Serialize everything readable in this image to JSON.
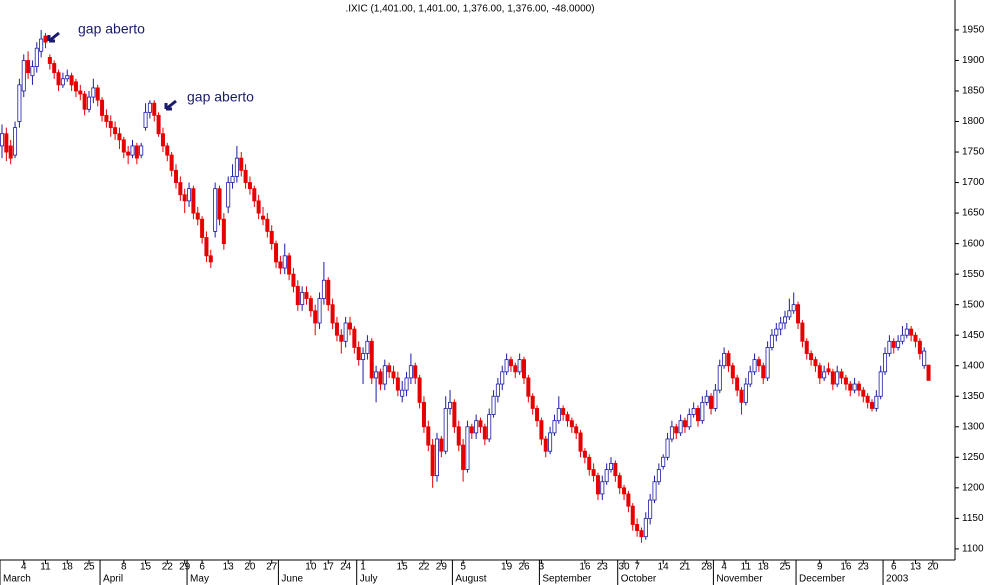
{
  "chart_data": {
    "type": "candlestick",
    "title": ".IXIC (1,401.00, 1,401.00, 1,376.00, 1,376.00, -48.0000)",
    "up_color": "#1c1ca8",
    "down_color": "#e60000",
    "annotations": [
      {
        "text": "gap aberto",
        "index": 10
      },
      {
        "text": "gap aberto",
        "index": 35
      }
    ],
    "ylim": [
      1090,
      1999
    ],
    "yticks": [
      1100,
      1150,
      1200,
      1250,
      1300,
      1350,
      1400,
      1450,
      1500,
      1550,
      1600,
      1650,
      1700,
      1750,
      1800,
      1850,
      1900,
      1950
    ],
    "xticks": [
      {
        "value": 5,
        "label": "4"
      },
      {
        "value": 10,
        "label": "11"
      },
      {
        "value": 15,
        "label": "18"
      },
      {
        "value": 20,
        "label": "25"
      },
      {
        "value": 28,
        "label": "8"
      },
      {
        "value": 33,
        "label": "15"
      },
      {
        "value": 38,
        "label": "22"
      },
      {
        "value": 42,
        "label": "29"
      },
      {
        "value": 46,
        "label": "6"
      },
      {
        "value": 52,
        "label": "13"
      },
      {
        "value": 57,
        "label": "20"
      },
      {
        "value": 62,
        "label": "27"
      },
      {
        "value": 71,
        "label": "10"
      },
      {
        "value": 75,
        "label": "17"
      },
      {
        "value": 79,
        "label": "24"
      },
      {
        "value": 83,
        "label": "1"
      },
      {
        "value": 92,
        "label": "15"
      },
      {
        "value": 97,
        "label": "22"
      },
      {
        "value": 101,
        "label": "29"
      },
      {
        "value": 106,
        "label": "5"
      },
      {
        "value": 116,
        "label": "19"
      },
      {
        "value": 120,
        "label": "26"
      },
      {
        "value": 124,
        "label": "3"
      },
      {
        "value": 134,
        "label": "16"
      },
      {
        "value": 138,
        "label": "23"
      },
      {
        "value": 143,
        "label": "30"
      },
      {
        "value": 146,
        "label": "7"
      },
      {
        "value": 152,
        "label": "14"
      },
      {
        "value": 157,
        "label": "21"
      },
      {
        "value": 162,
        "label": "28"
      },
      {
        "value": 166,
        "label": "4"
      },
      {
        "value": 171,
        "label": "11"
      },
      {
        "value": 175,
        "label": "18"
      },
      {
        "value": 180,
        "label": "25"
      },
      {
        "value": 188,
        "label": "9"
      },
      {
        "value": 194,
        "label": "16"
      },
      {
        "value": 198,
        "label": "23"
      },
      {
        "value": 205,
        "label": "6"
      },
      {
        "value": 210,
        "label": "13"
      },
      {
        "value": 214,
        "label": "20"
      }
    ],
    "months": [
      {
        "value": 0,
        "label": "March"
      },
      {
        "value": 23,
        "label": "April"
      },
      {
        "value": 43,
        "label": "May"
      },
      {
        "value": 64,
        "label": "June"
      },
      {
        "value": 82,
        "label": "July"
      },
      {
        "value": 104,
        "label": "August"
      },
      {
        "value": 124,
        "label": "September"
      },
      {
        "value": 142,
        "label": "October"
      },
      {
        "value": 164,
        "label": "November"
      },
      {
        "value": 183,
        "label": "December"
      },
      {
        "value": 203,
        "label": "2003"
      }
    ],
    "ohlc": [
      [
        1760,
        1795,
        1740,
        1780
      ],
      [
        1780,
        1790,
        1735,
        1750
      ],
      [
        1760,
        1770,
        1730,
        1740
      ],
      [
        1745,
        1800,
        1740,
        1790
      ],
      [
        1800,
        1870,
        1790,
        1860
      ],
      [
        1850,
        1910,
        1840,
        1900
      ],
      [
        1900,
        1915,
        1870,
        1880
      ],
      [
        1875,
        1900,
        1860,
        1890
      ],
      [
        1890,
        1930,
        1880,
        1920
      ],
      [
        1915,
        1950,
        1905,
        1935
      ],
      [
        1940,
        1945,
        1920,
        1930
      ],
      [
        1905,
        1910,
        1885,
        1895
      ],
      [
        1895,
        1900,
        1870,
        1880
      ],
      [
        1880,
        1885,
        1850,
        1860
      ],
      [
        1860,
        1880,
        1855,
        1870
      ],
      [
        1870,
        1885,
        1865,
        1875
      ],
      [
        1875,
        1880,
        1850,
        1860
      ],
      [
        1865,
        1870,
        1840,
        1850
      ],
      [
        1850,
        1860,
        1835,
        1845
      ],
      [
        1845,
        1850,
        1810,
        1820
      ],
      [
        1820,
        1850,
        1815,
        1840
      ],
      [
        1840,
        1870,
        1830,
        1855
      ],
      [
        1855,
        1860,
        1825,
        1835
      ],
      [
        1835,
        1840,
        1800,
        1810
      ],
      [
        1810,
        1820,
        1790,
        1800
      ],
      [
        1800,
        1810,
        1775,
        1790
      ],
      [
        1790,
        1800,
        1770,
        1780
      ],
      [
        1780,
        1790,
        1755,
        1770
      ],
      [
        1770,
        1775,
        1740,
        1750
      ],
      [
        1750,
        1760,
        1730,
        1745
      ],
      [
        1745,
        1770,
        1740,
        1760
      ],
      [
        1760,
        1765,
        1730,
        1740
      ],
      [
        1745,
        1765,
        1740,
        1760
      ],
      [
        1790,
        1830,
        1785,
        1815
      ],
      [
        1815,
        1835,
        1805,
        1830
      ],
      [
        1830,
        1835,
        1800,
        1810
      ],
      [
        1810,
        1815,
        1775,
        1780
      ],
      [
        1780,
        1790,
        1750,
        1760
      ],
      [
        1760,
        1765,
        1735,
        1745
      ],
      [
        1745,
        1750,
        1710,
        1720
      ],
      [
        1720,
        1730,
        1690,
        1700
      ],
      [
        1700,
        1710,
        1670,
        1680
      ],
      [
        1680,
        1690,
        1650,
        1670
      ],
      [
        1670,
        1700,
        1660,
        1690
      ],
      [
        1690,
        1695,
        1640,
        1650
      ],
      [
        1650,
        1660,
        1630,
        1640
      ],
      [
        1640,
        1645,
        1600,
        1610
      ],
      [
        1610,
        1620,
        1570,
        1580
      ],
      [
        1580,
        1590,
        1560,
        1570
      ],
      [
        1620,
        1700,
        1610,
        1690
      ],
      [
        1690,
        1695,
        1630,
        1640
      ],
      [
        1640,
        1650,
        1590,
        1600
      ],
      [
        1660,
        1710,
        1650,
        1700
      ],
      [
        1700,
        1730,
        1690,
        1710
      ],
      [
        1710,
        1760,
        1700,
        1740
      ],
      [
        1740,
        1750,
        1710,
        1720
      ],
      [
        1720,
        1730,
        1690,
        1700
      ],
      [
        1700,
        1710,
        1680,
        1690
      ],
      [
        1690,
        1695,
        1660,
        1670
      ],
      [
        1670,
        1680,
        1640,
        1650
      ],
      [
        1645,
        1660,
        1630,
        1640
      ],
      [
        1640,
        1650,
        1610,
        1620
      ],
      [
        1620,
        1630,
        1590,
        1600
      ],
      [
        1600,
        1605,
        1560,
        1570
      ],
      [
        1570,
        1580,
        1550,
        1560
      ],
      [
        1560,
        1600,
        1550,
        1580
      ],
      [
        1580,
        1585,
        1540,
        1550
      ],
      [
        1550,
        1560,
        1520,
        1530
      ],
      [
        1530,
        1540,
        1490,
        1500
      ],
      [
        1500,
        1530,
        1490,
        1520
      ],
      [
        1520,
        1530,
        1500,
        1510
      ],
      [
        1510,
        1515,
        1480,
        1490
      ],
      [
        1490,
        1500,
        1450,
        1470
      ],
      [
        1470,
        1520,
        1460,
        1510
      ],
      [
        1510,
        1570,
        1500,
        1540
      ],
      [
        1540,
        1545,
        1490,
        1500
      ],
      [
        1500,
        1510,
        1460,
        1470
      ],
      [
        1470,
        1480,
        1440,
        1450
      ],
      [
        1450,
        1460,
        1420,
        1440
      ],
      [
        1440,
        1480,
        1430,
        1470
      ],
      [
        1470,
        1480,
        1450,
        1460
      ],
      [
        1460,
        1465,
        1420,
        1430
      ],
      [
        1430,
        1440,
        1400,
        1410
      ],
      [
        1410,
        1430,
        1370,
        1420
      ],
      [
        1420,
        1450,
        1410,
        1440
      ],
      [
        1440,
        1445,
        1370,
        1380
      ],
      [
        1380,
        1400,
        1340,
        1390
      ],
      [
        1390,
        1395,
        1360,
        1370
      ],
      [
        1370,
        1410,
        1360,
        1400
      ],
      [
        1400,
        1405,
        1380,
        1390
      ],
      [
        1390,
        1400,
        1370,
        1380
      ],
      [
        1380,
        1390,
        1350,
        1360
      ],
      [
        1350,
        1375,
        1340,
        1360
      ],
      [
        1360,
        1390,
        1350,
        1380
      ],
      [
        1380,
        1420,
        1370,
        1400
      ],
      [
        1400,
        1405,
        1370,
        1380
      ],
      [
        1380,
        1385,
        1330,
        1340
      ],
      [
        1340,
        1350,
        1290,
        1300
      ],
      [
        1300,
        1310,
        1260,
        1270
      ],
      [
        1270,
        1280,
        1200,
        1220
      ],
      [
        1220,
        1290,
        1210,
        1280
      ],
      [
        1280,
        1285,
        1250,
        1260
      ],
      [
        1260,
        1350,
        1255,
        1330
      ],
      [
        1330,
        1360,
        1320,
        1340
      ],
      [
        1340,
        1345,
        1290,
        1300
      ],
      [
        1300,
        1310,
        1260,
        1270
      ],
      [
        1270,
        1280,
        1210,
        1230
      ],
      [
        1230,
        1310,
        1225,
        1300
      ],
      [
        1300,
        1305,
        1280,
        1290
      ],
      [
        1290,
        1320,
        1280,
        1310
      ],
      [
        1310,
        1315,
        1290,
        1300
      ],
      [
        1300,
        1305,
        1270,
        1280
      ],
      [
        1280,
        1330,
        1275,
        1320
      ],
      [
        1320,
        1360,
        1315,
        1350
      ],
      [
        1350,
        1380,
        1340,
        1370
      ],
      [
        1370,
        1400,
        1360,
        1390
      ],
      [
        1390,
        1420,
        1385,
        1410
      ],
      [
        1410,
        1415,
        1390,
        1400
      ],
      [
        1400,
        1405,
        1380,
        1390
      ],
      [
        1390,
        1420,
        1385,
        1410
      ],
      [
        1410,
        1415,
        1370,
        1380
      ],
      [
        1380,
        1385,
        1340,
        1350
      ],
      [
        1350,
        1355,
        1320,
        1330
      ],
      [
        1330,
        1335,
        1300,
        1310
      ],
      [
        1310,
        1315,
        1270,
        1280
      ],
      [
        1280,
        1285,
        1250,
        1260
      ],
      [
        1260,
        1300,
        1255,
        1290
      ],
      [
        1290,
        1320,
        1285,
        1310
      ],
      [
        1310,
        1350,
        1305,
        1330
      ],
      [
        1330,
        1335,
        1310,
        1320
      ],
      [
        1320,
        1325,
        1300,
        1310
      ],
      [
        1310,
        1315,
        1290,
        1300
      ],
      [
        1300,
        1305,
        1280,
        1290
      ],
      [
        1290,
        1295,
        1250,
        1260
      ],
      [
        1260,
        1265,
        1240,
        1250
      ],
      [
        1250,
        1255,
        1220,
        1230
      ],
      [
        1230,
        1240,
        1210,
        1220
      ],
      [
        1220,
        1225,
        1180,
        1190
      ],
      [
        1190,
        1220,
        1180,
        1210
      ],
      [
        1210,
        1240,
        1205,
        1230
      ],
      [
        1230,
        1250,
        1225,
        1240
      ],
      [
        1240,
        1245,
        1210,
        1220
      ],
      [
        1220,
        1225,
        1190,
        1200
      ],
      [
        1200,
        1205,
        1180,
        1190
      ],
      [
        1190,
        1195,
        1160,
        1170
      ],
      [
        1170,
        1175,
        1130,
        1140
      ],
      [
        1140,
        1150,
        1120,
        1130
      ],
      [
        1130,
        1135,
        1110,
        1120
      ],
      [
        1120,
        1160,
        1115,
        1150
      ],
      [
        1150,
        1190,
        1140,
        1180
      ],
      [
        1180,
        1220,
        1175,
        1210
      ],
      [
        1210,
        1240,
        1205,
        1230
      ],
      [
        1235,
        1255,
        1230,
        1250
      ],
      [
        1250,
        1290,
        1245,
        1280
      ],
      [
        1280,
        1310,
        1275,
        1300
      ],
      [
        1300,
        1305,
        1280,
        1290
      ],
      [
        1290,
        1320,
        1285,
        1310
      ],
      [
        1310,
        1315,
        1290,
        1300
      ],
      [
        1300,
        1330,
        1295,
        1320
      ],
      [
        1320,
        1340,
        1315,
        1330
      ],
      [
        1330,
        1335,
        1300,
        1310
      ],
      [
        1310,
        1350,
        1305,
        1340
      ],
      [
        1340,
        1360,
        1335,
        1350
      ],
      [
        1350,
        1355,
        1320,
        1330
      ],
      [
        1330,
        1370,
        1325,
        1360
      ],
      [
        1360,
        1410,
        1355,
        1400
      ],
      [
        1400,
        1430,
        1395,
        1420
      ],
      [
        1420,
        1425,
        1390,
        1400
      ],
      [
        1400,
        1405,
        1370,
        1380
      ],
      [
        1380,
        1385,
        1350,
        1360
      ],
      [
        1360,
        1365,
        1320,
        1340
      ],
      [
        1340,
        1380,
        1335,
        1370
      ],
      [
        1370,
        1400,
        1365,
        1390
      ],
      [
        1390,
        1420,
        1385,
        1410
      ],
      [
        1410,
        1415,
        1390,
        1400
      ],
      [
        1400,
        1405,
        1370,
        1380
      ],
      [
        1380,
        1440,
        1375,
        1430
      ],
      [
        1430,
        1460,
        1425,
        1450
      ],
      [
        1450,
        1470,
        1440,
        1460
      ],
      [
        1460,
        1480,
        1450,
        1470
      ],
      [
        1470,
        1490,
        1460,
        1480
      ],
      [
        1480,
        1510,
        1475,
        1490
      ],
      [
        1490,
        1520,
        1485,
        1500
      ],
      [
        1500,
        1505,
        1460,
        1470
      ],
      [
        1470,
        1475,
        1430,
        1440
      ],
      [
        1440,
        1445,
        1410,
        1420
      ],
      [
        1420,
        1425,
        1400,
        1410
      ],
      [
        1410,
        1415,
        1390,
        1400
      ],
      [
        1400,
        1405,
        1370,
        1380
      ],
      [
        1380,
        1400,
        1375,
        1390
      ],
      [
        1395,
        1405,
        1385,
        1390
      ],
      [
        1390,
        1395,
        1360,
        1370
      ],
      [
        1370,
        1400,
        1365,
        1390
      ],
      [
        1390,
        1395,
        1370,
        1380
      ],
      [
        1380,
        1385,
        1360,
        1370
      ],
      [
        1370,
        1375,
        1350,
        1360
      ],
      [
        1360,
        1380,
        1355,
        1370
      ],
      [
        1370,
        1375,
        1350,
        1360
      ],
      [
        1360,
        1365,
        1340,
        1350
      ],
      [
        1350,
        1355,
        1330,
        1340
      ],
      [
        1340,
        1345,
        1325,
        1330
      ],
      [
        1330,
        1360,
        1325,
        1350
      ],
      [
        1350,
        1400,
        1345,
        1390
      ],
      [
        1390,
        1430,
        1385,
        1420
      ],
      [
        1420,
        1450,
        1415,
        1440
      ],
      [
        1440,
        1445,
        1420,
        1430
      ],
      [
        1430,
        1450,
        1425,
        1440
      ],
      [
        1440,
        1465,
        1435,
        1450
      ],
      [
        1450,
        1470,
        1445,
        1460
      ],
      [
        1460,
        1465,
        1440,
        1450
      ],
      [
        1450,
        1455,
        1430,
        1440
      ],
      [
        1440,
        1445,
        1410,
        1420
      ],
      [
        1400,
        1430,
        1395,
        1424
      ],
      [
        1401,
        1401,
        1376,
        1376
      ]
    ]
  }
}
